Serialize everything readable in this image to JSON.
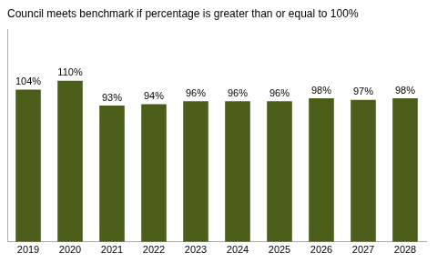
{
  "chart_data": {
    "type": "bar",
    "title": "Council meets benchmark if percentage is greater than or equal to 100%",
    "categories": [
      "2019",
      "2020",
      "2021",
      "2022",
      "2023",
      "2024",
      "2025",
      "2026",
      "2027",
      "2028"
    ],
    "values": [
      104,
      110,
      93,
      94,
      96,
      96,
      96,
      98,
      97,
      98
    ],
    "value_labels": [
      "104%",
      "110%",
      "93%",
      "94%",
      "96%",
      "96%",
      "96%",
      "98%",
      "97%",
      "98%"
    ],
    "data_labels": true,
    "color": "#4a5e1a",
    "ylim": [
      0,
      145
    ],
    "grid": false,
    "tick_labels": "x"
  }
}
